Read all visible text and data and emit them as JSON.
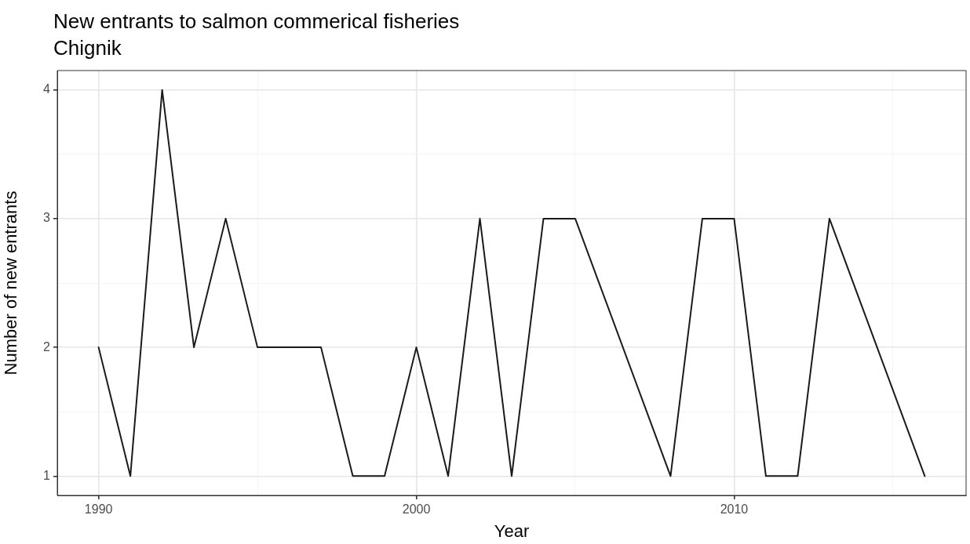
{
  "chart_data": {
    "type": "line",
    "title": "New entrants to salmon commerical fisheries",
    "subtitle": "Chignik",
    "xlabel": "Year",
    "ylabel": "Number of new entrants",
    "x": [
      1990,
      1991,
      1992,
      1993,
      1994,
      1995,
      1996,
      1997,
      1998,
      1999,
      2000,
      2001,
      2002,
      2003,
      2004,
      2005,
      2008,
      2009,
      2010,
      2011,
      2012,
      2013,
      2016
    ],
    "series": [
      {
        "color": "#1a1a1a",
        "values": [
          2,
          1,
          4,
          2,
          3,
          2,
          2,
          2,
          1,
          1,
          2,
          1,
          3,
          1,
          3,
          3,
          1,
          3,
          3,
          1,
          1,
          3,
          1
        ]
      }
    ],
    "xlim": [
      1988.7,
      2017.3
    ],
    "ylim": [
      0.85,
      4.15
    ],
    "xticks": [
      1990,
      {
        "value": 1995,
        "label": null
      },
      2000,
      {
        "value": 2005,
        "label": null
      },
      2010,
      {
        "value": 2015,
        "label": null
      }
    ],
    "yticks": [
      1,
      {
        "value": 1.5,
        "label": null
      },
      2,
      {
        "value": 2.5,
        "label": null
      },
      3,
      {
        "value": 3.5,
        "label": null
      },
      4
    ],
    "grid": true,
    "legend": false,
    "marker": "none",
    "line_style": "solid"
  }
}
